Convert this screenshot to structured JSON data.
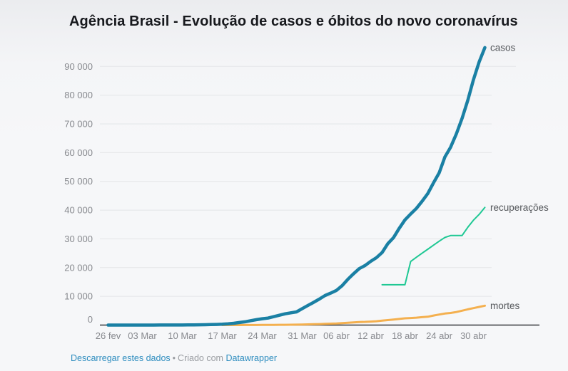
{
  "header": {
    "title": "Agência Brasil - Evolução de casos e óbitos do novo coronavírus"
  },
  "footer": {
    "download_label": "Descarregar estes dados",
    "separator": "•",
    "created_with": "Criado com",
    "datawrapper_label": "Datawrapper"
  },
  "chart_data": {
    "type": "line",
    "title": "Agência Brasil - Evolução de casos e óbitos do novo coronavírus",
    "grid": "horizontal",
    "legend_position": "direct-right-labels",
    "x_axis": {
      "start_date": "2020-02-26",
      "end_date": "2020-05-02",
      "ticks": [
        {
          "date": "2020-02-26",
          "label": "26 fev"
        },
        {
          "date": "2020-03-03",
          "label": "03 Mar"
        },
        {
          "date": "2020-03-10",
          "label": "10 Mar"
        },
        {
          "date": "2020-03-17",
          "label": "17 Mar"
        },
        {
          "date": "2020-03-24",
          "label": "24 Mar"
        },
        {
          "date": "2020-03-31",
          "label": "31 Mar"
        },
        {
          "date": "2020-04-06",
          "label": "06 abr"
        },
        {
          "date": "2020-04-12",
          "label": "12 abr"
        },
        {
          "date": "2020-04-18",
          "label": "18 abr"
        },
        {
          "date": "2020-04-24",
          "label": "24 abr"
        },
        {
          "date": "2020-04-30",
          "label": "30 abr"
        }
      ]
    },
    "y_axis": {
      "min": 0,
      "max": 90000,
      "tick_interval": 10000,
      "ticks": [
        {
          "value": 0,
          "label": "0"
        },
        {
          "value": 10000,
          "label": "10 000"
        },
        {
          "value": 20000,
          "label": "20 000"
        },
        {
          "value": 30000,
          "label": "30 000"
        },
        {
          "value": 40000,
          "label": "40 000"
        },
        {
          "value": 50000,
          "label": "50 000"
        },
        {
          "value": 60000,
          "label": "60 000"
        },
        {
          "value": 70000,
          "label": "70 000"
        },
        {
          "value": 80000,
          "label": "80 000"
        },
        {
          "value": 90000,
          "label": "90 000"
        }
      ]
    },
    "series": [
      {
        "key": "recuperacoes",
        "label": "recuperações",
        "color": "#1fc894",
        "stroke_width": 2,
        "points": [
          [
            "2020-04-14",
            14026
          ],
          [
            "2020-04-15",
            14026
          ],
          [
            "2020-04-16",
            14026
          ],
          [
            "2020-04-17",
            14026
          ],
          [
            "2020-04-18",
            14026
          ],
          [
            "2020-04-19",
            22130
          ],
          [
            "2020-04-20",
            23600
          ],
          [
            "2020-04-21",
            25000
          ],
          [
            "2020-04-22",
            26400
          ],
          [
            "2020-04-23",
            27800
          ],
          [
            "2020-04-24",
            29200
          ],
          [
            "2020-04-25",
            30500
          ],
          [
            "2020-04-26",
            31142
          ],
          [
            "2020-04-27",
            31142
          ],
          [
            "2020-04-28",
            31142
          ],
          [
            "2020-04-29",
            34000
          ],
          [
            "2020-04-30",
            36500
          ],
          [
            "2020-05-01",
            38500
          ],
          [
            "2020-05-02",
            40937
          ]
        ]
      },
      {
        "key": "mortes",
        "label": "mortes",
        "color": "#f4b04f",
        "stroke_width": 3,
        "points": [
          [
            "2020-03-17",
            1
          ],
          [
            "2020-03-18",
            4
          ],
          [
            "2020-03-19",
            6
          ],
          [
            "2020-03-20",
            11
          ],
          [
            "2020-03-21",
            18
          ],
          [
            "2020-03-22",
            25
          ],
          [
            "2020-03-23",
            34
          ],
          [
            "2020-03-24",
            46
          ],
          [
            "2020-03-25",
            57
          ],
          [
            "2020-03-26",
            77
          ],
          [
            "2020-03-27",
            92
          ],
          [
            "2020-03-28",
            111
          ],
          [
            "2020-03-29",
            136
          ],
          [
            "2020-03-30",
            159
          ],
          [
            "2020-03-31",
            201
          ],
          [
            "2020-04-01",
            240
          ],
          [
            "2020-04-02",
            299
          ],
          [
            "2020-04-03",
            359
          ],
          [
            "2020-04-04",
            431
          ],
          [
            "2020-04-05",
            486
          ],
          [
            "2020-04-06",
            553
          ],
          [
            "2020-04-07",
            667
          ],
          [
            "2020-04-08",
            800
          ],
          [
            "2020-04-09",
            941
          ],
          [
            "2020-04-10",
            1056
          ],
          [
            "2020-04-11",
            1124
          ],
          [
            "2020-04-12",
            1223
          ],
          [
            "2020-04-13",
            1328
          ],
          [
            "2020-04-14",
            1532
          ],
          [
            "2020-04-15",
            1736
          ],
          [
            "2020-04-16",
            1924
          ],
          [
            "2020-04-17",
            2141
          ],
          [
            "2020-04-18",
            2347
          ],
          [
            "2020-04-19",
            2462
          ],
          [
            "2020-04-20",
            2575
          ],
          [
            "2020-04-21",
            2741
          ],
          [
            "2020-04-22",
            2906
          ],
          [
            "2020-04-23",
            3313
          ],
          [
            "2020-04-24",
            3670
          ],
          [
            "2020-04-25",
            4016
          ],
          [
            "2020-04-26",
            4205
          ],
          [
            "2020-04-27",
            4543
          ],
          [
            "2020-04-28",
            5017
          ],
          [
            "2020-04-29",
            5466
          ],
          [
            "2020-04-30",
            5901
          ],
          [
            "2020-05-01",
            6329
          ],
          [
            "2020-05-02",
            6750
          ]
        ]
      },
      {
        "key": "casos",
        "label": "casos",
        "color": "#1a80a4",
        "stroke_width": 4.5,
        "points": [
          [
            "2020-02-26",
            1
          ],
          [
            "2020-02-27",
            1
          ],
          [
            "2020-02-28",
            1
          ],
          [
            "2020-02-29",
            2
          ],
          [
            "2020-03-01",
            2
          ],
          [
            "2020-03-02",
            2
          ],
          [
            "2020-03-03",
            2
          ],
          [
            "2020-03-04",
            3
          ],
          [
            "2020-03-05",
            8
          ],
          [
            "2020-03-06",
            13
          ],
          [
            "2020-03-07",
            19
          ],
          [
            "2020-03-08",
            25
          ],
          [
            "2020-03-09",
            25
          ],
          [
            "2020-03-10",
            34
          ],
          [
            "2020-03-11",
            52
          ],
          [
            "2020-03-12",
            77
          ],
          [
            "2020-03-13",
            98
          ],
          [
            "2020-03-14",
            121
          ],
          [
            "2020-03-15",
            176
          ],
          [
            "2020-03-16",
            234
          ],
          [
            "2020-03-17",
            291
          ],
          [
            "2020-03-18",
            428
          ],
          [
            "2020-03-19",
            621
          ],
          [
            "2020-03-20",
            904
          ],
          [
            "2020-03-21",
            1128
          ],
          [
            "2020-03-22",
            1546
          ],
          [
            "2020-03-23",
            1891
          ],
          [
            "2020-03-24",
            2201
          ],
          [
            "2020-03-25",
            2433
          ],
          [
            "2020-03-26",
            2915
          ],
          [
            "2020-03-27",
            3417
          ],
          [
            "2020-03-28",
            3904
          ],
          [
            "2020-03-29",
            4256
          ],
          [
            "2020-03-30",
            4579
          ],
          [
            "2020-03-31",
            5717
          ],
          [
            "2020-04-01",
            6836
          ],
          [
            "2020-04-02",
            7910
          ],
          [
            "2020-04-03",
            9056
          ],
          [
            "2020-04-04",
            10278
          ],
          [
            "2020-04-05",
            11130
          ],
          [
            "2020-04-06",
            12056
          ],
          [
            "2020-04-07",
            13717
          ],
          [
            "2020-04-08",
            15927
          ],
          [
            "2020-04-09",
            17857
          ],
          [
            "2020-04-10",
            19638
          ],
          [
            "2020-04-11",
            20727
          ],
          [
            "2020-04-12",
            22169
          ],
          [
            "2020-04-13",
            23430
          ],
          [
            "2020-04-14",
            25262
          ],
          [
            "2020-04-15",
            28320
          ],
          [
            "2020-04-16",
            30425
          ],
          [
            "2020-04-17",
            33682
          ],
          [
            "2020-04-18",
            36599
          ],
          [
            "2020-04-19",
            38654
          ],
          [
            "2020-04-20",
            40581
          ],
          [
            "2020-04-21",
            43079
          ],
          [
            "2020-04-22",
            45757
          ],
          [
            "2020-04-23",
            49492
          ],
          [
            "2020-04-24",
            52995
          ],
          [
            "2020-04-25",
            58509
          ],
          [
            "2020-04-26",
            61888
          ],
          [
            "2020-04-27",
            66501
          ],
          [
            "2020-04-28",
            71886
          ],
          [
            "2020-04-29",
            78162
          ],
          [
            "2020-04-30",
            85380
          ],
          [
            "2020-05-01",
            91589
          ],
          [
            "2020-05-02",
            96559
          ]
        ]
      }
    ]
  }
}
